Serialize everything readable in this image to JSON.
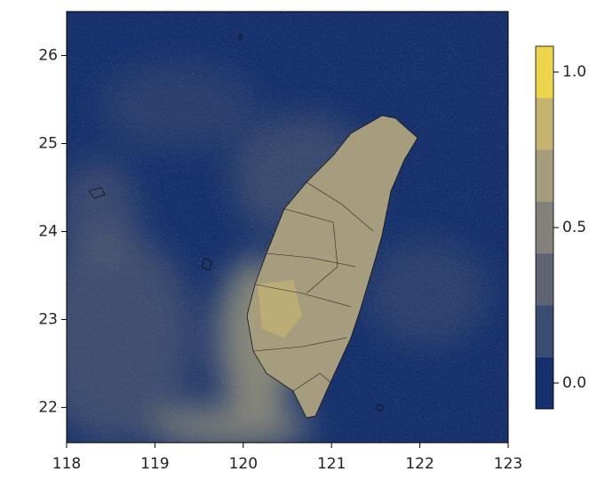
{
  "chart_data": {
    "type": "map",
    "xlim": [
      118,
      123
    ],
    "ylim": [
      21.6,
      26.5
    ],
    "xticks": [
      118,
      119,
      120,
      121,
      122,
      123
    ],
    "yticks": [
      22,
      23,
      24,
      25,
      26
    ],
    "colorbar": {
      "levels": [
        -0.083,
        0.083,
        0.25,
        0.417,
        0.583,
        0.75,
        0.917,
        1.083
      ],
      "colors": [
        "#15306c",
        "#3b4c72",
        "#5e6473",
        "#838179",
        "#a49c7d",
        "#c5b46f",
        "#ecd54a"
      ],
      "ticks": [
        {
          "value": 0,
          "label": "0.0"
        },
        0.5,
        {
          "value": 1,
          "label": "1.0"
        }
      ]
    }
  }
}
